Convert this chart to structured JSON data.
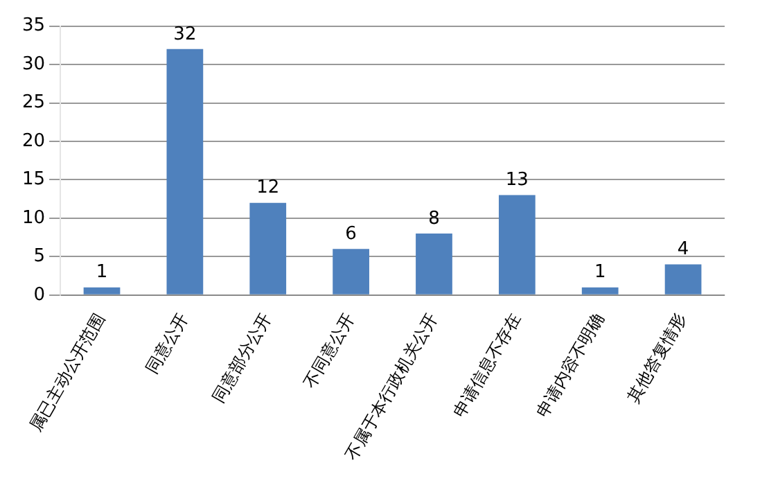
{
  "chart_data": {
    "type": "bar",
    "categories": [
      "属已主动公开范围",
      "同意公开",
      "同意部分公开",
      "不同意公开",
      "不属于本行政机关公开",
      "申请信息不存在",
      "申请内容不明确",
      "其他答复情形"
    ],
    "values": [
      1,
      32,
      12,
      6,
      8,
      13,
      1,
      4
    ],
    "color": "#4f81bd",
    "ylim": [
      0,
      35
    ],
    "yticks": [
      0,
      5,
      10,
      15,
      20,
      25,
      30,
      35
    ],
    "grid": "y",
    "data_labels": true
  }
}
